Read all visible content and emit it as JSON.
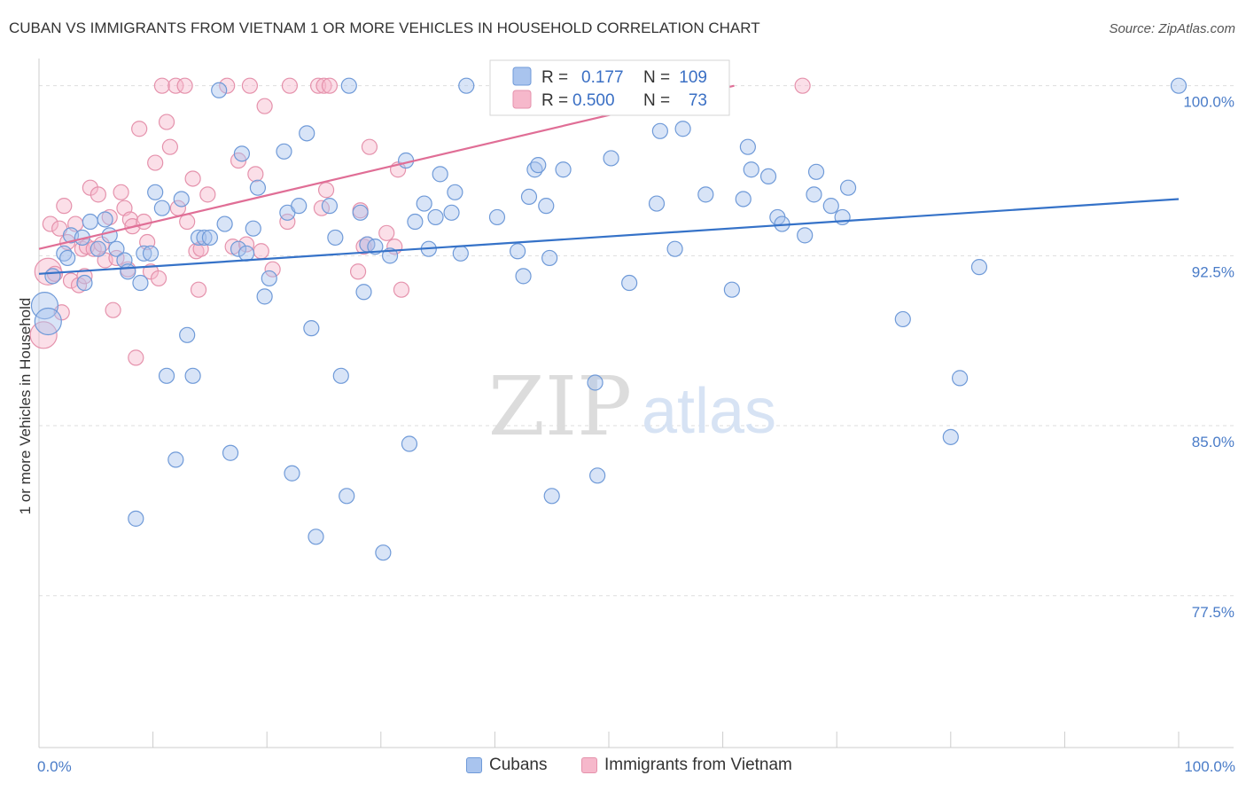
{
  "title": "CUBAN VS IMMIGRANTS FROM VIETNAM 1 OR MORE VEHICLES IN HOUSEHOLD CORRELATION CHART",
  "source": "Source: ZipAtlas.com",
  "watermark": {
    "zip": "ZIP",
    "atlas": "atlas"
  },
  "colors": {
    "cuban_fill": "#a9c4ee",
    "cuban_stroke": "#6f9ad8",
    "cuban_line": "#3572c8",
    "vietnam_fill": "#f6b8cb",
    "vietnam_stroke": "#e592ac",
    "vietnam_line": "#e06e96",
    "tick_label": "#4a7cc8",
    "grid": "#dddddd"
  },
  "stats": {
    "r_label": "R =",
    "n_label": "N =",
    "rows": [
      {
        "r": "0.177",
        "n": "109"
      },
      {
        "r": "0.500",
        "n": "73"
      }
    ]
  },
  "legend": [
    "Cubans",
    "Immigrants from Vietnam"
  ],
  "chart_data": {
    "type": "scatter",
    "title": "CUBAN VS IMMIGRANTS FROM VIETNAM 1 OR MORE VEHICLES IN HOUSEHOLD CORRELATION CHART",
    "xlabel": "",
    "ylabel": "1 or more Vehicles in Household",
    "xlim": [
      0,
      100
    ],
    "ylim": [
      70.8,
      101.2
    ],
    "x_tick_labels": [
      {
        "value": 0,
        "label": "0.0%"
      },
      {
        "value": 100,
        "label": "100.0%"
      }
    ],
    "y_tick_labels": [
      {
        "value": 100,
        "label": "100.0%"
      },
      {
        "value": 92.5,
        "label": "92.5%"
      },
      {
        "value": 85,
        "label": "85.0%"
      },
      {
        "value": 77.5,
        "label": "77.5%"
      }
    ],
    "grid": true,
    "legend_position": "bottom-center",
    "series": [
      {
        "name": "Cubans",
        "r": 0.177,
        "n": 109,
        "trend": {
          "x": [
            0,
            100
          ],
          "y": [
            91.7,
            95.0
          ]
        },
        "points": [
          [
            0.5,
            90.3
          ],
          [
            0.8,
            89.6
          ],
          [
            1.2,
            91.6
          ],
          [
            2.2,
            92.6
          ],
          [
            2.5,
            92.4
          ],
          [
            2.8,
            93.4
          ],
          [
            3.8,
            93.3
          ],
          [
            4.0,
            91.3
          ],
          [
            4.5,
            94.0
          ],
          [
            5.2,
            92.8
          ],
          [
            5.8,
            94.1
          ],
          [
            6.2,
            93.4
          ],
          [
            6.8,
            92.8
          ],
          [
            7.5,
            92.3
          ],
          [
            7.8,
            91.8
          ],
          [
            8.5,
            80.9
          ],
          [
            8.9,
            91.3
          ],
          [
            9.2,
            92.6
          ],
          [
            9.8,
            92.6
          ],
          [
            10.2,
            95.3
          ],
          [
            10.8,
            94.6
          ],
          [
            11.2,
            87.2
          ],
          [
            12.0,
            83.5
          ],
          [
            12.5,
            95.0
          ],
          [
            13.0,
            89.0
          ],
          [
            13.5,
            87.2
          ],
          [
            14.0,
            93.3
          ],
          [
            14.5,
            93.3
          ],
          [
            15.0,
            93.3
          ],
          [
            15.8,
            99.8
          ],
          [
            16.3,
            93.9
          ],
          [
            16.8,
            83.8
          ],
          [
            17.5,
            92.8
          ],
          [
            17.8,
            97.0
          ],
          [
            18.2,
            92.6
          ],
          [
            18.8,
            93.7
          ],
          [
            19.2,
            95.5
          ],
          [
            19.8,
            90.7
          ],
          [
            20.2,
            91.5
          ],
          [
            21.5,
            97.1
          ],
          [
            21.8,
            94.4
          ],
          [
            22.2,
            82.9
          ],
          [
            22.8,
            94.7
          ],
          [
            23.5,
            97.9
          ],
          [
            23.9,
            89.3
          ],
          [
            24.3,
            80.1
          ],
          [
            25.5,
            94.7
          ],
          [
            26.0,
            93.3
          ],
          [
            26.5,
            87.2
          ],
          [
            27.0,
            81.9
          ],
          [
            27.2,
            100.0
          ],
          [
            28.2,
            94.4
          ],
          [
            28.5,
            90.9
          ],
          [
            28.8,
            93.0
          ],
          [
            29.5,
            92.9
          ],
          [
            30.2,
            79.4
          ],
          [
            30.8,
            92.5
          ],
          [
            32.2,
            96.7
          ],
          [
            32.5,
            84.2
          ],
          [
            33.0,
            94.0
          ],
          [
            33.8,
            94.8
          ],
          [
            34.2,
            92.8
          ],
          [
            34.8,
            94.2
          ],
          [
            35.2,
            96.1
          ],
          [
            36.2,
            94.4
          ],
          [
            36.5,
            95.3
          ],
          [
            37.0,
            92.6
          ],
          [
            37.5,
            100.0
          ],
          [
            40.2,
            94.2
          ],
          [
            42.0,
            92.7
          ],
          [
            42.5,
            91.6
          ],
          [
            43.0,
            95.1
          ],
          [
            43.5,
            96.3
          ],
          [
            43.8,
            96.5
          ],
          [
            44.5,
            94.7
          ],
          [
            44.8,
            92.4
          ],
          [
            45.0,
            81.9
          ],
          [
            46.0,
            96.3
          ],
          [
            48.8,
            86.9
          ],
          [
            49.0,
            82.8
          ],
          [
            50.2,
            96.8
          ],
          [
            51.8,
            91.3
          ],
          [
            54.2,
            94.8
          ],
          [
            54.5,
            98.0
          ],
          [
            55.8,
            92.8
          ],
          [
            56.5,
            98.1
          ],
          [
            58.5,
            95.2
          ],
          [
            60.8,
            91.0
          ],
          [
            61.8,
            95.0
          ],
          [
            62.2,
            97.3
          ],
          [
            62.5,
            96.3
          ],
          [
            64.0,
            96.0
          ],
          [
            64.8,
            94.2
          ],
          [
            65.2,
            93.9
          ],
          [
            67.2,
            93.4
          ],
          [
            68.0,
            95.2
          ],
          [
            68.2,
            96.2
          ],
          [
            69.5,
            94.7
          ],
          [
            70.5,
            94.2
          ],
          [
            71.0,
            95.5
          ],
          [
            75.8,
            89.7
          ],
          [
            80.0,
            84.5
          ],
          [
            80.8,
            87.1
          ],
          [
            82.5,
            92.0
          ],
          [
            100.0,
            100.0
          ]
        ]
      },
      {
        "name": "Immigrants from Vietnam",
        "r": 0.5,
        "n": 73,
        "trend": {
          "x": [
            0,
            61.0
          ],
          "y": [
            92.8,
            100.0
          ]
        },
        "points": [
          [
            0.4,
            89.0
          ],
          [
            0.8,
            91.8
          ],
          [
            1.0,
            93.9
          ],
          [
            1.4,
            91.7
          ],
          [
            1.8,
            93.7
          ],
          [
            2.0,
            90.0
          ],
          [
            2.2,
            94.7
          ],
          [
            2.5,
            93.1
          ],
          [
            2.8,
            91.4
          ],
          [
            3.2,
            93.9
          ],
          [
            3.5,
            91.2
          ],
          [
            3.8,
            92.8
          ],
          [
            4.0,
            91.6
          ],
          [
            4.2,
            92.9
          ],
          [
            4.5,
            95.5
          ],
          [
            4.8,
            92.8
          ],
          [
            5.2,
            95.2
          ],
          [
            5.5,
            93.0
          ],
          [
            5.8,
            92.3
          ],
          [
            6.2,
            94.2
          ],
          [
            6.5,
            90.1
          ],
          [
            6.8,
            92.4
          ],
          [
            7.2,
            95.3
          ],
          [
            7.5,
            94.6
          ],
          [
            7.8,
            91.9
          ],
          [
            8.0,
            94.1
          ],
          [
            8.2,
            93.8
          ],
          [
            8.5,
            88.0
          ],
          [
            8.8,
            98.1
          ],
          [
            9.2,
            94.0
          ],
          [
            9.5,
            93.1
          ],
          [
            9.8,
            91.8
          ],
          [
            10.2,
            96.6
          ],
          [
            10.5,
            91.5
          ],
          [
            10.8,
            100.0
          ],
          [
            11.2,
            98.4
          ],
          [
            11.5,
            97.3
          ],
          [
            12.0,
            100.0
          ],
          [
            12.2,
            94.6
          ],
          [
            12.8,
            100.0
          ],
          [
            13.0,
            94.0
          ],
          [
            13.5,
            95.9
          ],
          [
            13.8,
            92.7
          ],
          [
            14.0,
            91.0
          ],
          [
            14.2,
            92.8
          ],
          [
            14.8,
            95.2
          ],
          [
            16.5,
            100.0
          ],
          [
            17.0,
            92.9
          ],
          [
            17.5,
            96.7
          ],
          [
            18.2,
            93.0
          ],
          [
            18.5,
            100.0
          ],
          [
            19.0,
            96.1
          ],
          [
            19.5,
            92.7
          ],
          [
            19.8,
            99.1
          ],
          [
            20.5,
            91.9
          ],
          [
            21.8,
            94.0
          ],
          [
            22.0,
            100.0
          ],
          [
            24.5,
            100.0
          ],
          [
            24.8,
            94.6
          ],
          [
            25.0,
            100.0
          ],
          [
            25.2,
            95.4
          ],
          [
            25.5,
            100.0
          ],
          [
            28.0,
            91.8
          ],
          [
            28.2,
            94.5
          ],
          [
            28.5,
            92.9
          ],
          [
            28.8,
            93.0
          ],
          [
            29.0,
            97.3
          ],
          [
            30.5,
            93.5
          ],
          [
            31.2,
            92.9
          ],
          [
            31.5,
            96.3
          ],
          [
            31.8,
            91.0
          ],
          [
            52.8,
            99.4
          ],
          [
            67.0,
            100.0
          ]
        ]
      }
    ]
  }
}
